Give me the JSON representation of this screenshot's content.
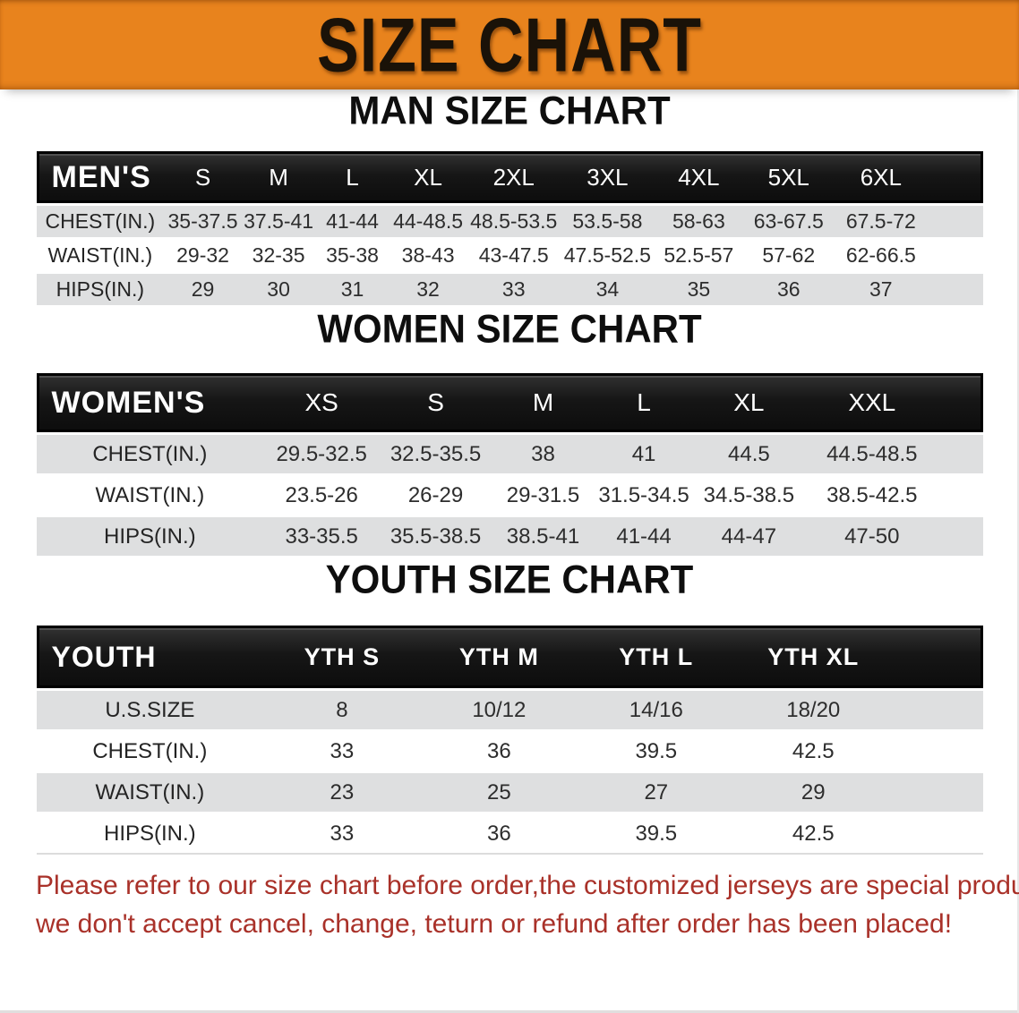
{
  "banner": {
    "title": "SIZE CHART"
  },
  "colors": {
    "banner_orange": "#E8831D",
    "header_band_black": "#161616",
    "row_stripe_gray": "#DEDFE0",
    "disclaimer_red": "#A93129"
  },
  "chart_data": [
    {
      "type": "table",
      "title": "MAN SIZE CHART",
      "header_label": "MEN'S",
      "columns": [
        "S",
        "M",
        "L",
        "XL",
        "2XL",
        "3XL",
        "4XL",
        "5XL",
        "6XL"
      ],
      "rows": [
        {
          "label": "CHEST(IN.)",
          "values": [
            "35-37.5",
            "37.5-41",
            "41-44",
            "44-48.5",
            "48.5-53.5",
            "53.5-58",
            "58-63",
            "63-67.5",
            "67.5-72"
          ]
        },
        {
          "label": "WAIST(IN.)",
          "values": [
            "29-32",
            "32-35",
            "35-38",
            "38-43",
            "43-47.5",
            "47.5-52.5",
            "52.5-57",
            "57-62",
            "62-66.5"
          ]
        },
        {
          "label": "HIPS(IN.)",
          "values": [
            "29",
            "30",
            "31",
            "32",
            "33",
            "34",
            "35",
            "36",
            "37"
          ]
        }
      ]
    },
    {
      "type": "table",
      "title": "WOMEN SIZE CHART",
      "header_label": "WOMEN'S",
      "columns": [
        "XS",
        "S",
        "M",
        "L",
        "XL",
        "XXL"
      ],
      "rows": [
        {
          "label": "CHEST(IN.)",
          "values": [
            "29.5-32.5",
            "32.5-35.5",
            "38",
            "41",
            "44.5",
            "44.5-48.5"
          ]
        },
        {
          "label": "WAIST(IN.)",
          "values": [
            "23.5-26",
            "26-29",
            "29-31.5",
            "31.5-34.5",
            "34.5-38.5",
            "38.5-42.5"
          ]
        },
        {
          "label": "HIPS(IN.)",
          "values": [
            "33-35.5",
            "35.5-38.5",
            "38.5-41",
            "41-44",
            "44-47",
            "47-50"
          ]
        }
      ]
    },
    {
      "type": "table",
      "title": "YOUTH SIZE CHART",
      "header_label": "YOUTH",
      "columns": [
        "YTH S",
        "YTH M",
        "YTH L",
        "YTH XL"
      ],
      "rows": [
        {
          "label": "U.S.SIZE",
          "values": [
            "8",
            "10/12",
            "14/16",
            "18/20"
          ]
        },
        {
          "label": "CHEST(IN.)",
          "values": [
            "33",
            "36",
            "39.5",
            "42.5"
          ]
        },
        {
          "label": "WAIST(IN.)",
          "values": [
            "23",
            "25",
            "27",
            "29"
          ]
        },
        {
          "label": "HIPS(IN.)",
          "values": [
            "33",
            "36",
            "39.5",
            "42.5"
          ]
        }
      ]
    }
  ],
  "disclaimer": {
    "line1": "Please refer to our size chart before order,the customized jerseys are special products,",
    "line2": "we don't accept cancel, change, teturn or refund after order has been placed!"
  }
}
